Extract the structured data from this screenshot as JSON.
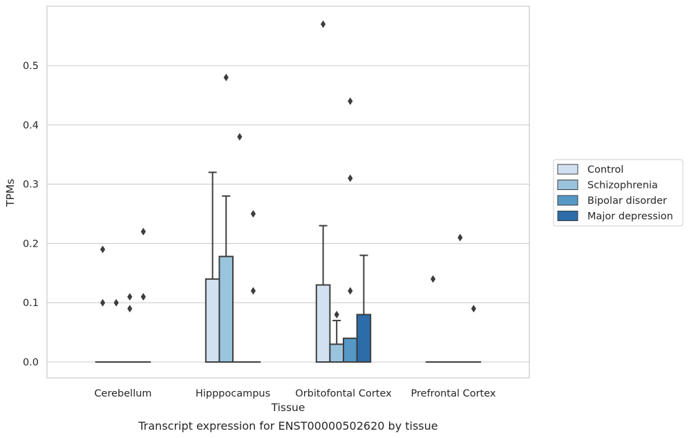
{
  "chart_data": {
    "type": "box",
    "xlabel": "Tissue",
    "ylabel": "TPMs",
    "caption": "Transcript expression for ENST00000502620 by tissue",
    "categories": [
      "Cerebellum",
      "Hipppocampus",
      "Orbitofontal Cortex",
      "Prefrontal Cortex"
    ],
    "ylim": [
      -0.028,
      0.599
    ],
    "yticks": [
      0.0,
      0.1,
      0.2,
      0.3,
      0.4,
      0.5
    ],
    "ytick_labels": [
      "0.0",
      "0.1",
      "0.2",
      "0.3",
      "0.4",
      "0.5"
    ],
    "grid": true,
    "legend_position": "right",
    "series": [
      {
        "name": "Control",
        "color": "#d1e1f1",
        "boxes": [
          {
            "q1": 0,
            "q3": 0,
            "median": 0,
            "whisker_low": 0,
            "whisker_high": 0,
            "outliers": [
              0.19,
              0.1
            ]
          },
          {
            "q1": 0,
            "q3": 0.14,
            "median": 0,
            "whisker_low": 0,
            "whisker_high": 0.32,
            "outliers": []
          },
          {
            "q1": 0,
            "q3": 0.13,
            "median": 0,
            "whisker_low": 0,
            "whisker_high": 0.23,
            "outliers": [
              0.57
            ]
          },
          {
            "q1": 0,
            "q3": 0,
            "median": 0,
            "whisker_low": 0,
            "whisker_high": 0,
            "outliers": [
              0.14
            ]
          }
        ]
      },
      {
        "name": "Schizophrenia",
        "color": "#9ac4de",
        "boxes": [
          {
            "q1": 0,
            "q3": 0,
            "median": 0,
            "whisker_low": 0,
            "whisker_high": 0,
            "outliers": [
              0.1
            ]
          },
          {
            "q1": 0,
            "q3": 0.178,
            "median": 0,
            "whisker_low": 0,
            "whisker_high": 0.28,
            "outliers": [
              0.48
            ]
          },
          {
            "q1": 0,
            "q3": 0.03,
            "median": 0,
            "whisker_low": 0,
            "whisker_high": 0.07,
            "outliers": [
              0.08
            ]
          },
          {
            "q1": 0,
            "q3": 0,
            "median": 0,
            "whisker_low": 0,
            "whisker_high": 0,
            "outliers": []
          }
        ]
      },
      {
        "name": "Bipolar disorder",
        "color": "#5598c5",
        "boxes": [
          {
            "q1": 0,
            "q3": 0,
            "median": 0,
            "whisker_low": 0,
            "whisker_high": 0,
            "outliers": [
              0.11,
              0.09
            ]
          },
          {
            "q1": 0,
            "q3": 0,
            "median": 0,
            "whisker_low": 0,
            "whisker_high": 0,
            "outliers": [
              0.38
            ]
          },
          {
            "q1": 0,
            "q3": 0.04,
            "median": 0,
            "whisker_low": 0,
            "whisker_high": 0.04,
            "outliers": [
              0.44,
              0.31,
              0.12
            ]
          },
          {
            "q1": 0,
            "q3": 0,
            "median": 0,
            "whisker_low": 0,
            "whisker_high": 0,
            "outliers": [
              0.21
            ]
          }
        ]
      },
      {
        "name": "Major depression",
        "color": "#2b6ca9",
        "boxes": [
          {
            "q1": 0,
            "q3": 0,
            "median": 0,
            "whisker_low": 0,
            "whisker_high": 0,
            "outliers": [
              0.22,
              0.11
            ]
          },
          {
            "q1": 0,
            "q3": 0,
            "median": 0,
            "whisker_low": 0,
            "whisker_high": 0,
            "outliers": [
              0.25,
              0.12
            ]
          },
          {
            "q1": 0,
            "q3": 0.08,
            "median": 0,
            "whisker_low": 0,
            "whisker_high": 0.18,
            "outliers": []
          },
          {
            "q1": 0,
            "q3": 0,
            "median": 0,
            "whisker_low": 0,
            "whisker_high": 0,
            "outliers": [
              0.09
            ]
          }
        ]
      }
    ],
    "colors": {
      "grid": "#cccccc",
      "frame": "#cccccc",
      "line": "#3d3d3d"
    }
  }
}
